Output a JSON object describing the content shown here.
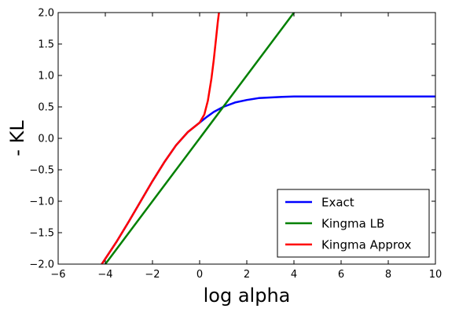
{
  "chart_data": {
    "type": "line",
    "xlabel": "log alpha",
    "ylabel": "- KL",
    "xlim": [
      -6,
      10
    ],
    "ylim": [
      -2.0,
      2.0
    ],
    "x_ticks": [
      "−6",
      "−4",
      "−2",
      "0",
      "2",
      "4",
      "6",
      "8",
      "10"
    ],
    "x_tick_values": [
      -6,
      -4,
      -2,
      0,
      2,
      4,
      6,
      8,
      10
    ],
    "y_ticks": [
      "−2.0",
      "−1.5",
      "−1.0",
      "−0.5",
      "0.0",
      "0.5",
      "1.0",
      "1.5",
      "2.0"
    ],
    "y_tick_values": [
      -2.0,
      -1.5,
      -1.0,
      -0.5,
      0.0,
      0.5,
      1.0,
      1.5,
      2.0
    ],
    "grid": false,
    "legend_position": "bottom-right",
    "series": [
      {
        "name": "Exact",
        "color": "#0000ff",
        "x": [
          -4.15,
          -3.5,
          -3.0,
          -2.5,
          -2.0,
          -1.5,
          -1.0,
          -0.5,
          0.0,
          0.3,
          0.6,
          1.0,
          1.5,
          2.0,
          2.5,
          3.0,
          3.5,
          4.0,
          5.0,
          6.0,
          8.0,
          10.0
        ],
        "y": [
          -2.0,
          -1.63,
          -1.32,
          -1.0,
          -0.68,
          -0.38,
          -0.11,
          0.1,
          0.25,
          0.34,
          0.42,
          0.5,
          0.57,
          0.61,
          0.64,
          0.65,
          0.66,
          0.665,
          0.665,
          0.665,
          0.665,
          0.665
        ]
      },
      {
        "name": "Kingma LB",
        "color": "#008000",
        "x": [
          -4.0,
          4.0
        ],
        "y": [
          -2.0,
          2.0
        ]
      },
      {
        "name": "Kingma Approx",
        "color": "#ff0000",
        "x": [
          -4.15,
          -3.5,
          -3.0,
          -2.5,
          -2.0,
          -1.5,
          -1.0,
          -0.5,
          0.0,
          0.2,
          0.35,
          0.5,
          0.6,
          0.7,
          0.77,
          0.82
        ],
        "y": [
          -2.0,
          -1.63,
          -1.32,
          -1.0,
          -0.68,
          -0.38,
          -0.11,
          0.1,
          0.25,
          0.38,
          0.6,
          0.95,
          1.25,
          1.6,
          1.85,
          2.0
        ]
      }
    ]
  }
}
